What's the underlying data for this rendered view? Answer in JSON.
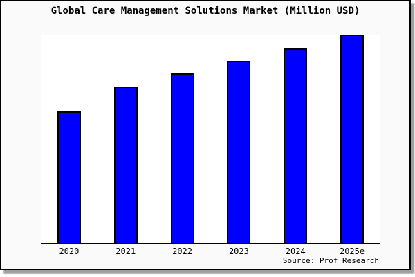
{
  "figure": {
    "title": "Global Care Management Solutions Market (Million USD)",
    "source": "Source: Prof Research"
  },
  "colors": {
    "bar_fill": "#0000ff",
    "bar_edge": "#000000",
    "plot_background": "#ffffff",
    "figure_background": "#fafafa",
    "figure_border": "#000000",
    "axis_line": "#000000",
    "text": "#000000",
    "shadow": "#9e9e9e"
  },
  "chart_data": {
    "type": "bar",
    "title": "Global Care Management Solutions Market (Million USD)",
    "categories": [
      "2020",
      "2021",
      "2022",
      "2023",
      "2024",
      "2025e"
    ],
    "values": [
      63,
      75,
      81.5,
      87.5,
      93.5,
      100
    ],
    "xlabel": "",
    "ylabel": "",
    "ylim": [
      0,
      100
    ],
    "y_axis_ticks": "none",
    "grid": false,
    "legend": false,
    "source": "Source: Prof Research",
    "note": "No y-axis scale is shown in the chart; values are bar heights expressed as percent of the tallest bar (2025e = 100)"
  }
}
